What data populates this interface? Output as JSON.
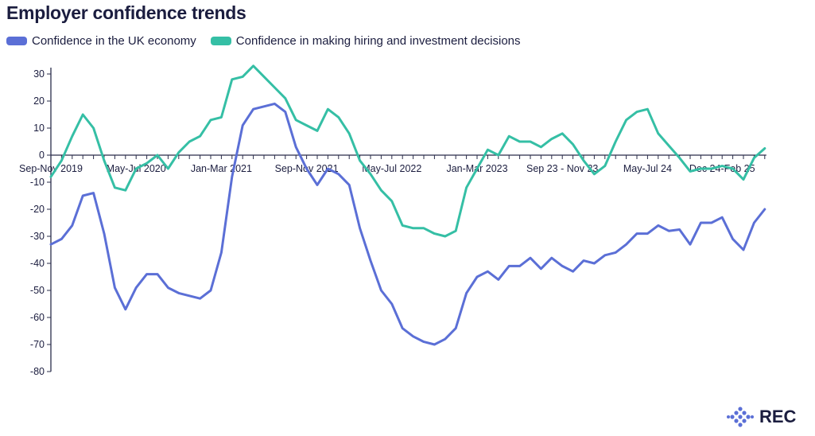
{
  "chart_data": {
    "type": "line",
    "title": "Employer confidence trends",
    "xlabel": "",
    "ylabel": "",
    "ylim": [
      -80,
      30
    ],
    "yticks": [
      30,
      20,
      10,
      0,
      -10,
      -20,
      -30,
      -40,
      -50,
      -60,
      -70,
      -80
    ],
    "xtick_labels": [
      {
        "index": 0,
        "label": "Sep-Nov 2019"
      },
      {
        "index": 8,
        "label": "May-Jul 2020"
      },
      {
        "index": 16,
        "label": "Jan-Mar 2021"
      },
      {
        "index": 24,
        "label": "Sep-Nov 2021"
      },
      {
        "index": 32,
        "label": "May-Jul 2022"
      },
      {
        "index": 40,
        "label": "Jan-Mar 2023"
      },
      {
        "index": 48,
        "label": "Sep 23 - Nov 23"
      },
      {
        "index": 56,
        "label": "May-Jul 24"
      },
      {
        "index": 63,
        "label": "Dec 24-Feb 25"
      }
    ],
    "legend_position": "top-left",
    "series": [
      {
        "name": "Confidence in the UK economy",
        "color": "#5b6fd6",
        "values": [
          -33,
          -31,
          -26,
          -15,
          -14,
          -29,
          -49,
          -57,
          -49,
          -44,
          -44,
          -49,
          -51,
          -52,
          -53,
          -50,
          -36,
          -8,
          11,
          17,
          18,
          19,
          16,
          3,
          -5,
          -11,
          -5,
          -7,
          -11,
          -27,
          -39,
          -50,
          -55,
          -64,
          -67,
          -69,
          -70,
          -68,
          -64,
          -51,
          -45,
          -43,
          -46,
          -41,
          -41,
          -38,
          -42,
          -38,
          -41,
          -43,
          -39,
          -40,
          -37,
          -36,
          -33,
          -29,
          -29,
          -26,
          -28,
          -27.5,
          -33,
          -25,
          -25,
          -23,
          -31,
          -35,
          -25,
          -20
        ]
      },
      {
        "name": "Confidence in making hiring and investment decisions",
        "color": "#35bfa5",
        "values": [
          -8,
          -2,
          7,
          15,
          10,
          -2,
          -12,
          -13,
          -5,
          -3,
          0,
          -5,
          1,
          5,
          7,
          13,
          14,
          28,
          29,
          33,
          29,
          25,
          21,
          13,
          11,
          9,
          17,
          14,
          8,
          -2,
          -7,
          -13,
          -17,
          -26,
          -27,
          -27,
          -29,
          -30,
          -28,
          -12,
          -5,
          2,
          0,
          7,
          5,
          5,
          3,
          6,
          8,
          4,
          -2,
          -7,
          -4,
          5,
          13,
          16,
          17,
          8,
          3.5,
          -1,
          -6,
          -5,
          -5,
          -4,
          -5,
          -9,
          -1,
          2.5
        ]
      }
    ]
  },
  "logo": {
    "text": "REC"
  }
}
